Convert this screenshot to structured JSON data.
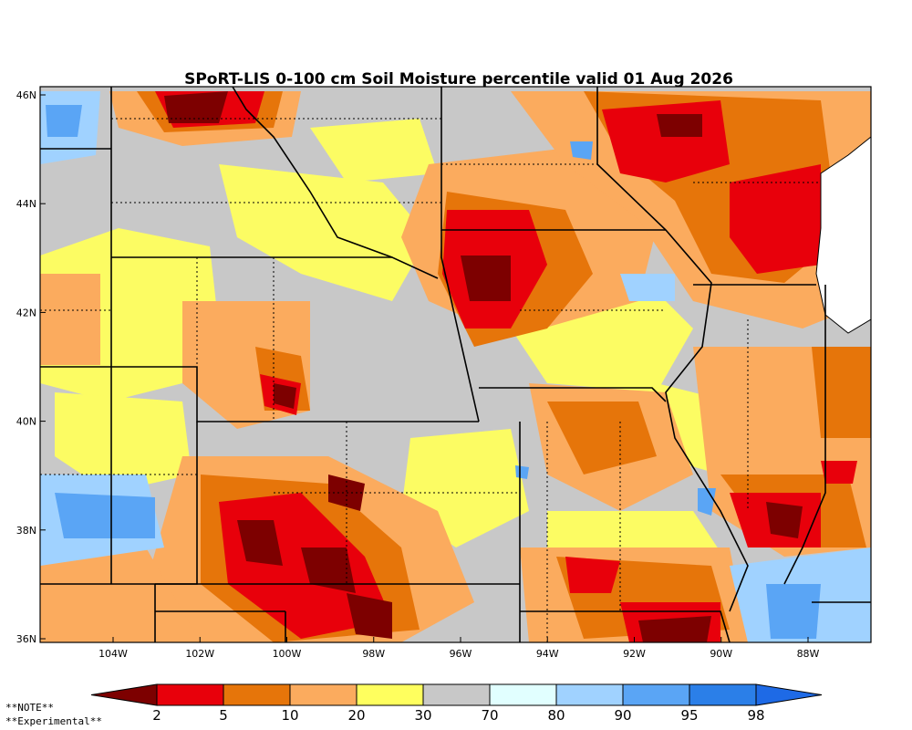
{
  "title": "SPoRT-LIS 0-100 cm Soil Moisture percentile valid 01 Aug 2026",
  "lat_labels": [
    "46N",
    "44N",
    "42N",
    "40N",
    "38N",
    "36N"
  ],
  "lon_labels": [
    "104W",
    "102W",
    "100W",
    "98W",
    "96W",
    "94W",
    "92W",
    "90W",
    "88W"
  ],
  "colorbar": {
    "colors": [
      "#7d0000",
      "#e8000b",
      "#e6750a",
      "#fbab5e",
      "#ffff5e",
      "#c8c8c8",
      "#e1ffff",
      "#a0d2ff",
      "#5aa5f5",
      "#2b7fe8",
      "#1e6ae6"
    ],
    "labels": [
      "2",
      "5",
      "10",
      "20",
      "30",
      "70",
      "80",
      "90",
      "95",
      "98"
    ]
  },
  "notes": [
    "**NOTE**",
    "**Experimental**"
  ]
}
